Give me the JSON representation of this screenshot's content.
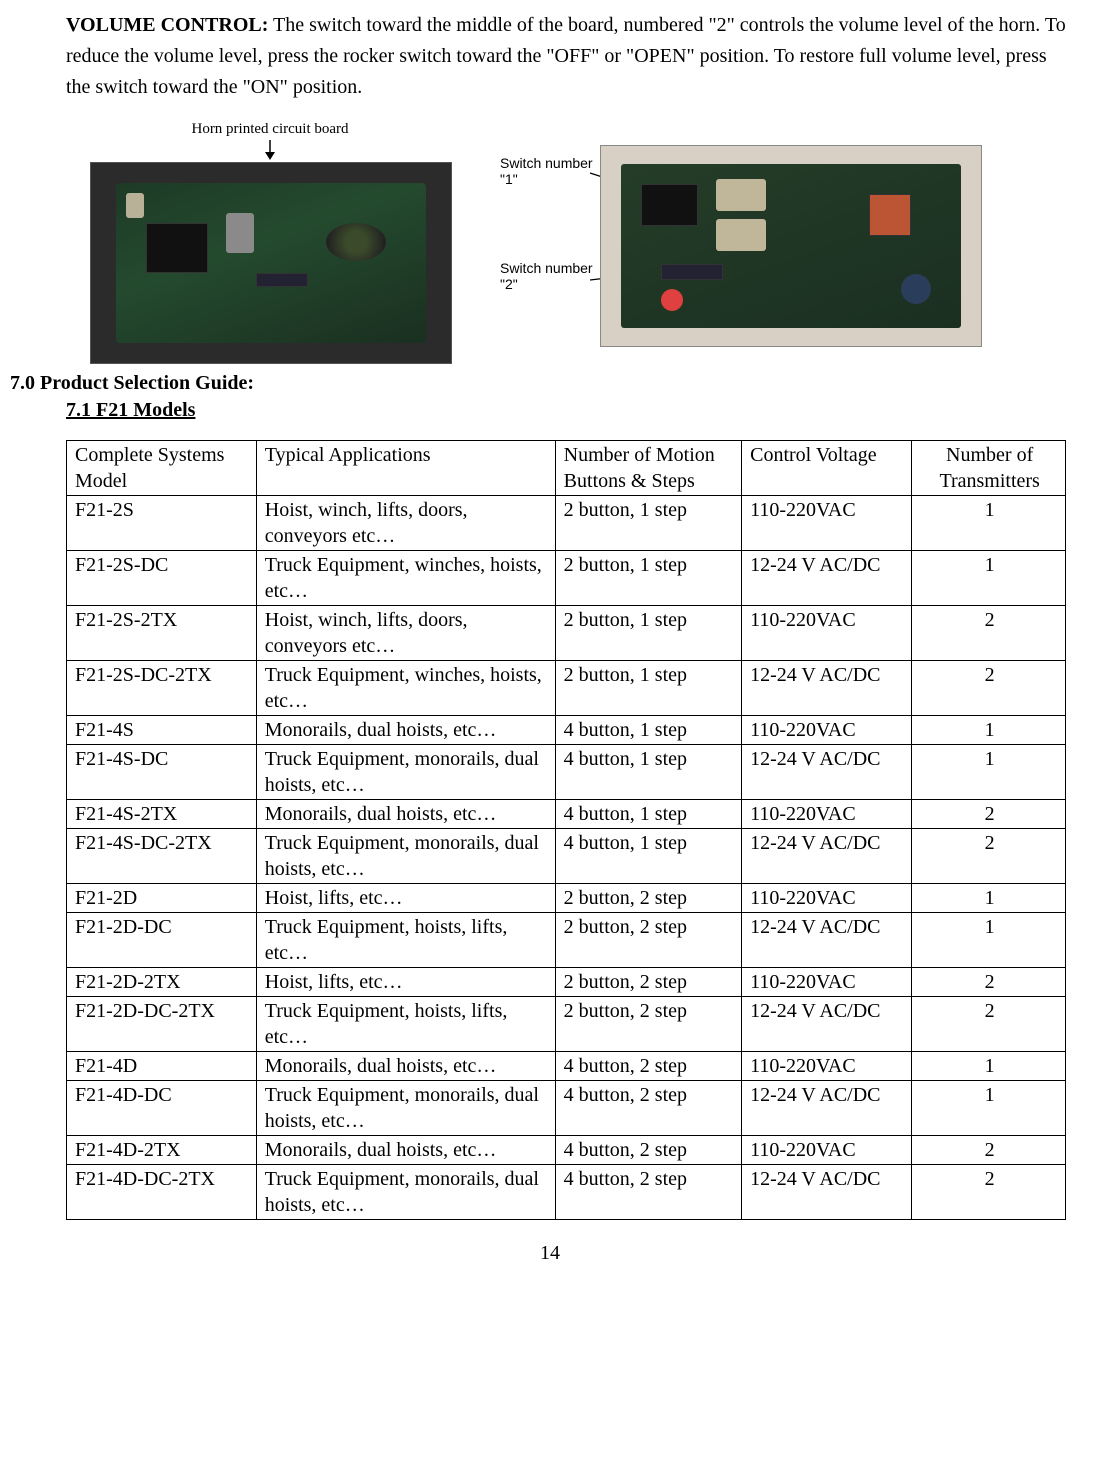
{
  "intro": {
    "lead": "VOLUME CONTROL:",
    "body": "  The switch toward the middle of the board, numbered \"2\" controls the volume level of the horn.  To reduce the volume level, press the rocker switch toward the \"OFF\" or \"OPEN\" position.  To restore full volume level, press the switch toward the \"ON\" position."
  },
  "figLeft": {
    "caption": "Horn printed circuit board"
  },
  "figRight": {
    "label1": "Switch number \"1\"",
    "label2": "Switch number \"2\""
  },
  "sectionTitle": "7.0 Product Selection Guide:",
  "subsectionTitle": "7.1 F21 Models",
  "table": {
    "columns": [
      "Complete Systems Model",
      "Typical Applications",
      "Number of Motion Buttons & Steps",
      "Control Voltage",
      "Number of Transmitters"
    ],
    "rows": [
      [
        "F21-2S",
        "Hoist, winch, lifts, doors, conveyors etc…",
        "2 button, 1 step",
        "110-220VAC",
        "1"
      ],
      [
        "F21-2S-DC",
        "Truck Equipment, winches, hoists, etc…",
        "2 button, 1 step",
        "12-24 V AC/DC",
        "1"
      ],
      [
        "F21-2S-2TX",
        "Hoist, winch, lifts, doors, conveyors etc…",
        "2 button, 1 step",
        "110-220VAC",
        "2"
      ],
      [
        "F21-2S-DC-2TX",
        "Truck Equipment, winches, hoists, etc…",
        "2 button, 1 step",
        "12-24 V AC/DC",
        "2"
      ],
      [
        "F21-4S",
        "Monorails, dual hoists, etc…",
        "4 button, 1 step",
        "110-220VAC",
        "1"
      ],
      [
        "F21-4S-DC",
        "Truck Equipment, monorails, dual hoists, etc…",
        "4 button, 1 step",
        "12-24 V AC/DC",
        "1"
      ],
      [
        "F21-4S-2TX",
        "Monorails, dual hoists, etc…",
        "4 button, 1 step",
        "110-220VAC",
        "2"
      ],
      [
        "F21-4S-DC-2TX",
        "Truck Equipment, monorails, dual hoists, etc…",
        "4 button, 1 step",
        "12-24 V AC/DC",
        "2"
      ],
      [
        "F21-2D",
        "Hoist, lifts, etc…",
        "2 button, 2 step",
        "110-220VAC",
        "1"
      ],
      [
        "F21-2D-DC",
        "Truck Equipment, hoists, lifts, etc…",
        "2 button, 2 step",
        "12-24 V AC/DC",
        "1"
      ],
      [
        "F21-2D-2TX",
        "Hoist, lifts, etc…",
        "2 button, 2 step",
        "110-220VAC",
        "2"
      ],
      [
        "F21-2D-DC-2TX",
        "Truck Equipment, hoists, lifts, etc…",
        "2 button, 2 step",
        "12-24 V AC/DC",
        "2"
      ],
      [
        "F21-4D",
        "Monorails, dual hoists, etc…",
        "4 button, 2 step",
        "110-220VAC",
        "1"
      ],
      [
        "F21-4D-DC",
        "Truck Equipment, monorails, dual hoists, etc…",
        "4 button, 2 step",
        "12-24 V AC/DC",
        "1"
      ],
      [
        "F21-4D-2TX",
        "Monorails, dual hoists, etc…",
        "4 button, 2 step",
        "110-220VAC",
        "2"
      ],
      [
        "F21-4D-DC-2TX",
        "Truck Equipment, monorails, dual hoists, etc…",
        "4 button, 2 step",
        "12-24 V AC/DC",
        "2"
      ]
    ]
  },
  "pageNumber": "14"
}
